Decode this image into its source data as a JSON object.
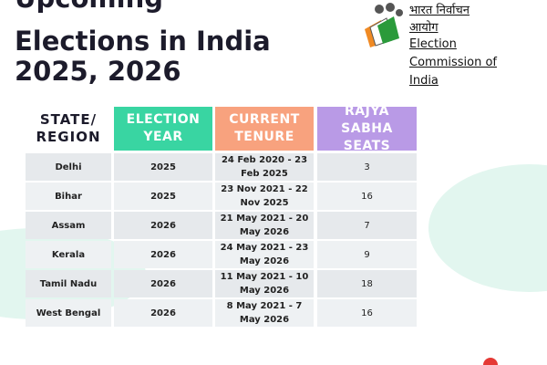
{
  "title": {
    "lines": [
      "Upcoming",
      "Elections in India",
      "2025, 2026"
    ]
  },
  "logo": {
    "hindi": [
      "भारत निर्वाचन",
      "आयोग"
    ],
    "english": [
      "Election",
      "Commission of",
      "India"
    ]
  },
  "table": {
    "headers": [
      "STATE/ REGION",
      "ELECTION YEAR",
      "CURRENT TENURE",
      "RAJYA SABHA SEATS"
    ],
    "rows": [
      [
        "Delhi",
        "2025",
        "24 Feb 2020 - 23 Feb 2025",
        "3"
      ],
      [
        "Bihar",
        "2025",
        "23 Nov 2021 - 22 Nov 2025",
        "16"
      ],
      [
        "Assam",
        "2026",
        "21 May 2021 - 20 May 2026",
        "7"
      ],
      [
        "Kerala",
        "2026",
        "24 May 2021 - 23 May 2026",
        "9"
      ],
      [
        "Tamil Nadu",
        "2026",
        "11 May 2021 - 10 May 2026",
        "18"
      ],
      [
        "West Bengal",
        "2026",
        "8 May 2021 - 7 May 2026",
        "16"
      ]
    ]
  }
}
